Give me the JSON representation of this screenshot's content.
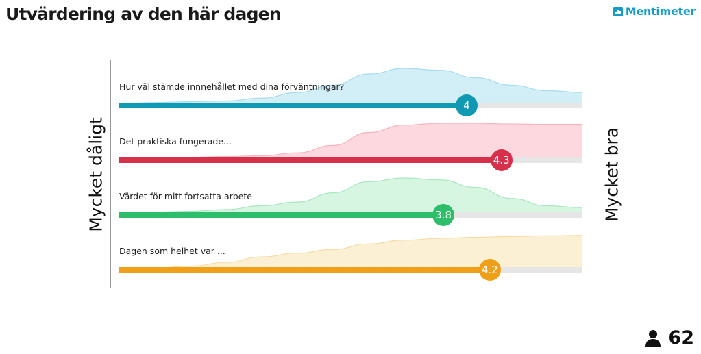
{
  "title": "Utvärdering av den här dagen",
  "brand": "Mentimeter",
  "scale": {
    "left_label": "Mycket dåligt",
    "right_label": "Mycket bra",
    "min": 1,
    "max": 5
  },
  "questions": [
    {
      "label": "Hur väl stämde innnehållet med dina förväntningar?",
      "value": 4,
      "value_text": "4",
      "color": "#0f99b3",
      "area_color": "#d2eff8",
      "area_stroke": "#a6dcee",
      "distribution": [
        0.05,
        0.08,
        0.1,
        0.12,
        0.2,
        0.35,
        0.55,
        0.85,
        1.0,
        0.95,
        0.75,
        0.55,
        0.4,
        0.35
      ]
    },
    {
      "label": "Det praktiska fungerade...",
      "value": 4.3,
      "value_text": "4.3",
      "color": "#d6304a",
      "area_color": "#fdd8de",
      "area_stroke": "#f4b3bf",
      "distribution": [
        0.05,
        0.07,
        0.08,
        0.1,
        0.12,
        0.2,
        0.4,
        0.75,
        0.95,
        1.0,
        1.0,
        0.98,
        0.97,
        0.97
      ]
    },
    {
      "label": "Värdet för mitt fortsatta arbete",
      "value": 3.8,
      "value_text": "3.8",
      "color": "#2ebd6a",
      "area_color": "#d6f6e2",
      "area_stroke": "#a7e6bf",
      "distribution": [
        0.05,
        0.08,
        0.1,
        0.15,
        0.25,
        0.35,
        0.6,
        0.9,
        1.0,
        0.95,
        0.75,
        0.45,
        0.25,
        0.2
      ]
    },
    {
      "label": "Dagen som helhet var ...",
      "value": 4.2,
      "value_text": "4.2",
      "color": "#f0a018",
      "area_color": "#fcf0d4",
      "area_stroke": "#f5dca4",
      "distribution": [
        0.02,
        0.05,
        0.1,
        0.2,
        0.35,
        0.45,
        0.55,
        0.7,
        0.8,
        0.85,
        0.88,
        0.9,
        0.92,
        0.93
      ]
    }
  ],
  "participants": "62"
}
